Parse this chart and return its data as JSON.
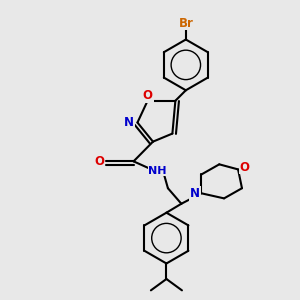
{
  "bg": "#e8e8e8",
  "bc": "#000000",
  "bw": 1.5,
  "atom_colors": {
    "Br": "#cc6600",
    "O": "#dd0000",
    "N": "#0000cc",
    "H": "#555555"
  },
  "xlim": [
    0,
    10
  ],
  "ylim": [
    0,
    10
  ]
}
